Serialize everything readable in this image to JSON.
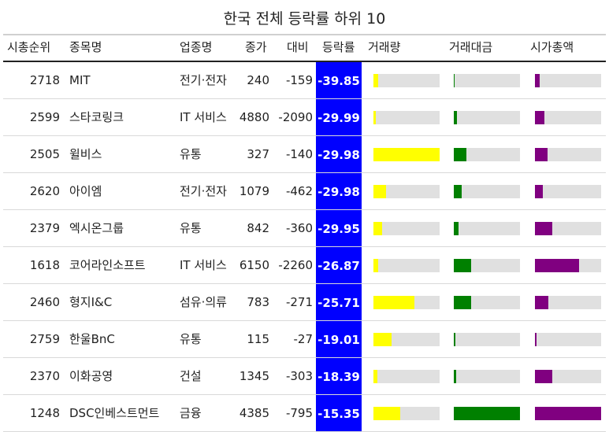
{
  "title": "한국 전체 등락률 하위 10",
  "columns": [
    "시총순위",
    "종목명",
    "업종명",
    "종가",
    "대비",
    "등락률",
    "거래량",
    "거래대금",
    "시가총액"
  ],
  "colors": {
    "rate_bg": "#0000ff",
    "volume": "#ffff00",
    "amount": "#008000",
    "cap": "#800080",
    "track": "#e0e0e0"
  },
  "rows": [
    {
      "rank": "2718",
      "name": "MIT",
      "sector": "전기·전자",
      "close": "240",
      "change": "-159",
      "rate": "-39.85",
      "volume": 0.07,
      "amount": 0.01,
      "cap": 0.07
    },
    {
      "rank": "2599",
      "name": "스타코링크",
      "sector": "IT 서비스",
      "close": "4880",
      "change": "-2090",
      "rate": "-29.99",
      "volume": 0.04,
      "amount": 0.05,
      "cap": 0.14
    },
    {
      "rank": "2505",
      "name": "윌비스",
      "sector": "유통",
      "close": "327",
      "change": "-140",
      "rate": "-29.98",
      "volume": 1.0,
      "amount": 0.19,
      "cap": 0.19
    },
    {
      "rank": "2620",
      "name": "아이엠",
      "sector": "전기·전자",
      "close": "1079",
      "change": "-462",
      "rate": "-29.98",
      "volume": 0.19,
      "amount": 0.12,
      "cap": 0.12
    },
    {
      "rank": "2379",
      "name": "엑시온그룹",
      "sector": "유통",
      "close": "842",
      "change": "-360",
      "rate": "-29.95",
      "volume": 0.13,
      "amount": 0.07,
      "cap": 0.26
    },
    {
      "rank": "1618",
      "name": "코어라인소프트",
      "sector": "IT 서비스",
      "close": "6150",
      "change": "-2260",
      "rate": "-26.87",
      "volume": 0.07,
      "amount": 0.26,
      "cap": 0.67
    },
    {
      "rank": "2460",
      "name": "형지I&C",
      "sector": "섬유·의류",
      "close": "783",
      "change": "-271",
      "rate": "-25.71",
      "volume": 0.62,
      "amount": 0.26,
      "cap": 0.2
    },
    {
      "rank": "2759",
      "name": "한울BnC",
      "sector": "유통",
      "close": "115",
      "change": "-27",
      "rate": "-19.01",
      "volume": 0.27,
      "amount": 0.02,
      "cap": 0.02
    },
    {
      "rank": "2370",
      "name": "이화공영",
      "sector": "건설",
      "close": "1345",
      "change": "-303",
      "rate": "-18.39",
      "volume": 0.06,
      "amount": 0.04,
      "cap": 0.26
    },
    {
      "rank": "1248",
      "name": "DSC인베스트먼트",
      "sector": "금융",
      "close": "4385",
      "change": "-795",
      "rate": "-15.35",
      "volume": 0.4,
      "amount": 1.0,
      "cap": 1.0
    }
  ]
}
